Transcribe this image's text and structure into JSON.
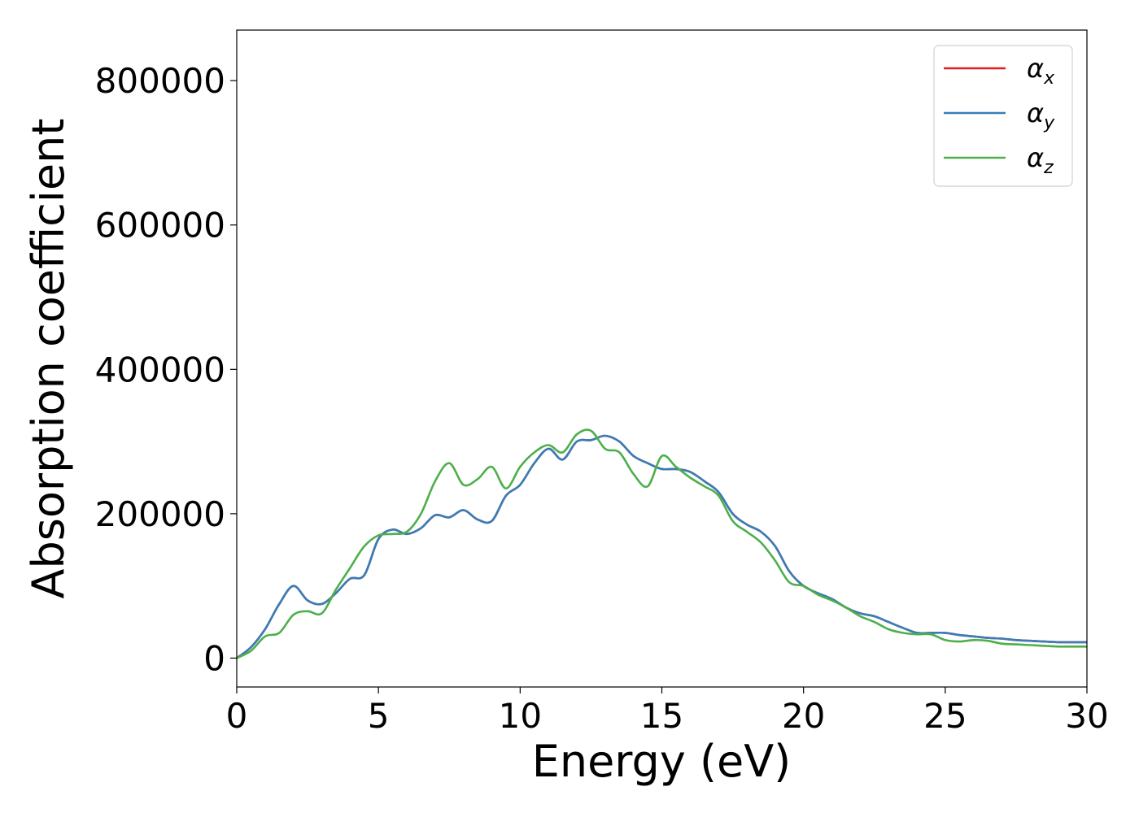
{
  "chart_data": {
    "type": "line",
    "title": "",
    "xlabel": "Energy (eV)",
    "ylabel": "Absorption coefficient",
    "xlim": [
      0,
      30
    ],
    "ylim": [
      -40000,
      870000
    ],
    "xticks": [
      0,
      5,
      10,
      15,
      20,
      25,
      30
    ],
    "yticks": [
      0,
      200000,
      400000,
      600000,
      800000
    ],
    "xtick_labels": [
      "0",
      "5",
      "10",
      "15",
      "20",
      "25",
      "30"
    ],
    "ytick_labels": [
      "0",
      "200000",
      "400000",
      "600000",
      "800000"
    ],
    "grid": false,
    "legend_position": "top-right",
    "x": [
      0,
      0.5,
      1,
      1.5,
      2,
      2.5,
      3,
      3.5,
      4,
      4.5,
      5,
      5.5,
      6,
      6.5,
      7,
      7.5,
      8,
      8.5,
      9,
      9.5,
      10,
      10.5,
      11,
      11.5,
      12,
      12.5,
      13,
      13.5,
      14,
      14.5,
      15,
      15.5,
      16,
      16.5,
      17,
      17.5,
      18,
      18.5,
      19,
      19.5,
      20,
      20.5,
      21,
      21.5,
      22,
      22.5,
      23,
      23.5,
      24,
      24.5,
      25,
      25.5,
      26,
      26.5,
      27,
      27.5,
      28,
      28.5,
      29,
      29.5,
      30
    ],
    "series": [
      {
        "name": "α",
        "subscript": "x",
        "color": "#e41a1c",
        "values": [
          0,
          15000,
          40000,
          75000,
          100000,
          80000,
          75000,
          90000,
          110000,
          115000,
          165000,
          178000,
          172000,
          180000,
          198000,
          195000,
          205000,
          192000,
          190000,
          225000,
          240000,
          270000,
          290000,
          275000,
          300000,
          302000,
          308000,
          300000,
          280000,
          270000,
          262000,
          262000,
          258000,
          245000,
          230000,
          200000,
          185000,
          175000,
          155000,
          120000,
          100000,
          90000,
          82000,
          70000,
          62000,
          58000,
          50000,
          42000,
          35000,
          35000,
          35000,
          32000,
          30000,
          28000,
          27000,
          25000,
          24000,
          23000,
          22000,
          22000,
          22000
        ]
      },
      {
        "name": "α",
        "subscript": "y",
        "color": "#377eb8",
        "values": [
          0,
          15000,
          40000,
          75000,
          100000,
          80000,
          75000,
          90000,
          110000,
          115000,
          165000,
          178000,
          172000,
          180000,
          198000,
          195000,
          205000,
          192000,
          190000,
          225000,
          240000,
          270000,
          290000,
          275000,
          300000,
          302000,
          308000,
          300000,
          280000,
          270000,
          262000,
          262000,
          258000,
          245000,
          230000,
          200000,
          185000,
          175000,
          155000,
          120000,
          100000,
          90000,
          82000,
          70000,
          62000,
          58000,
          50000,
          42000,
          35000,
          35000,
          35000,
          32000,
          30000,
          28000,
          27000,
          25000,
          24000,
          23000,
          22000,
          22000,
          22000
        ]
      },
      {
        "name": "α",
        "subscript": "z",
        "color": "#4daf4a",
        "values": [
          0,
          10000,
          30000,
          35000,
          60000,
          65000,
          62000,
          95000,
          125000,
          155000,
          170000,
          172000,
          175000,
          200000,
          245000,
          270000,
          240000,
          248000,
          265000,
          235000,
          265000,
          285000,
          295000,
          285000,
          310000,
          315000,
          290000,
          285000,
          255000,
          238000,
          280000,
          265000,
          250000,
          238000,
          225000,
          190000,
          175000,
          160000,
          135000,
          105000,
          100000,
          88000,
          80000,
          70000,
          58000,
          50000,
          40000,
          35000,
          33000,
          33000,
          25000,
          23000,
          25000,
          24000,
          20000,
          19000,
          18000,
          17000,
          16000,
          16000,
          16000
        ]
      }
    ]
  }
}
